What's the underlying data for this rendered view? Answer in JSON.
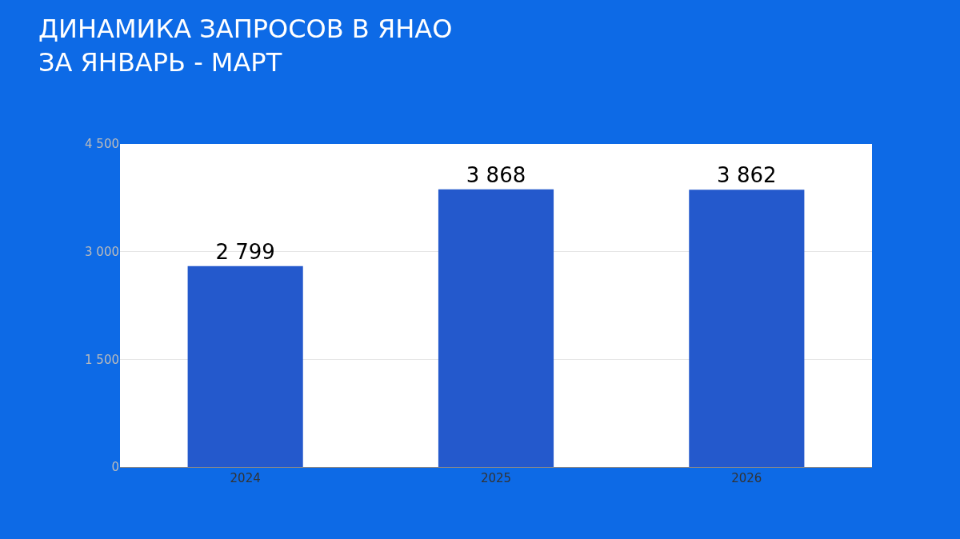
{
  "chart_data": {
    "type": "bar",
    "title": "ДИНАМИКА ЗАПРОСОВ В ЯНАО\nЗА ЯНВАРЬ - МАРТ",
    "categories": [
      "2024",
      "2025",
      "2026"
    ],
    "values": [
      2799,
      3868,
      3862
    ],
    "value_labels": [
      "2 799",
      "3 868",
      "3 862"
    ],
    "color": "#2459cc",
    "ylim": [
      0,
      4500
    ],
    "yticks": [
      {
        "value": 0,
        "label": "0"
      },
      {
        "value": 1500,
        "label": "1 500"
      },
      {
        "value": 3000,
        "label": "3 000"
      },
      {
        "value": 4500,
        "label": "4 500"
      }
    ],
    "grid": "y"
  }
}
